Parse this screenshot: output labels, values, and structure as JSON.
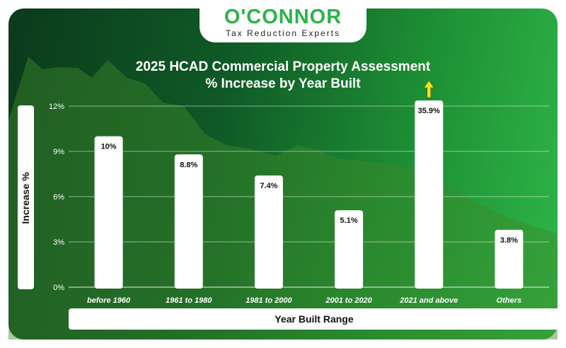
{
  "logo": {
    "name": "O'CONNOR",
    "tagline": "Tax Reduction Experts"
  },
  "colors": {
    "brand_green": "#2bb34a",
    "bar": "#ffffff",
    "arrow": "#f2e41a",
    "background_dark": "#0b3a1c",
    "background_light": "#2fb648"
  },
  "chart_data": {
    "type": "bar",
    "title": "2025 HCAD Commercial Property Assessment",
    "subtitle": "% Increase by Year Built",
    "xlabel": "Year Built Range",
    "ylabel": "Increase %",
    "categories": [
      "before 1960",
      "1961 to 1980",
      "1981 to 2000",
      "2001 to 2020",
      "2021 and above",
      "Others"
    ],
    "values": [
      10,
      8.8,
      7.4,
      5.1,
      35.9,
      3.8
    ],
    "data_labels": [
      "10%",
      "8.8%",
      "7.4%",
      "5.1%",
      "35.9%",
      "3.8%"
    ],
    "yticks": [
      "0%",
      "3%",
      "6%",
      "9%",
      "12%"
    ],
    "ylim": [
      0,
      12
    ],
    "clipped_bars": [
      {
        "category": "2021 and above",
        "marker": "up-arrow"
      }
    ],
    "grid": true,
    "legend": "none"
  }
}
